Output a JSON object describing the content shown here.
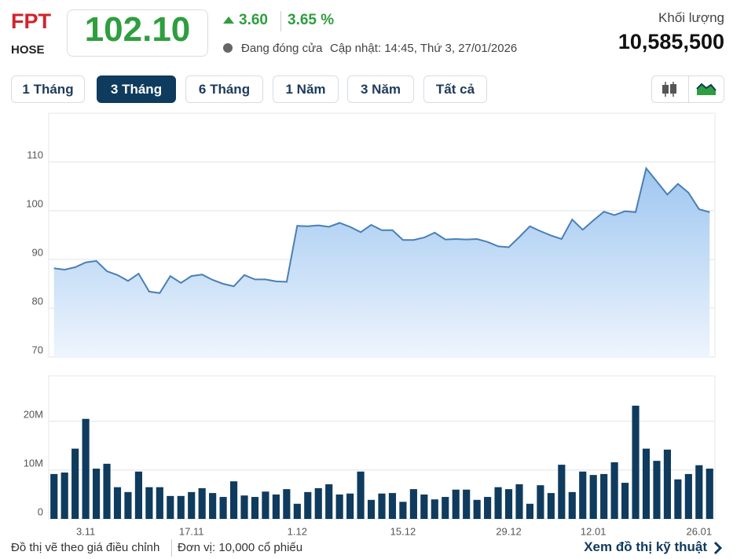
{
  "header": {
    "symbol": "FPT",
    "exchange": "HOSE",
    "price": "102.10",
    "change": "3.60",
    "change_pct": "3.65 %",
    "status": "Đang đóng cửa",
    "updated": "Cập nhật: 14:45, Thứ 3, 27/01/2026",
    "volume_label": "Khối lượng",
    "volume": "10,585,500"
  },
  "tabs": [
    "1 Tháng",
    "3 Tháng",
    "6 Tháng",
    "1 Năm",
    "3 Năm",
    "Tất cả"
  ],
  "active_tab": 1,
  "footer": {
    "note": "Đồ thị vẽ theo giá điều chỉnh",
    "unit": "Đơn vị: 10,000 cổ phiếu",
    "link": "Xem đồ thị kỹ thuật"
  },
  "chart_data": [
    {
      "type": "area",
      "color": "#4a7fb5",
      "grid": true,
      "ylim": [
        70,
        120
      ],
      "yticks": [
        70,
        80,
        90,
        100,
        110
      ],
      "values": [
        88.2,
        87.9,
        88.4,
        89.4,
        89.7,
        87.6,
        86.8,
        85.6,
        87.1,
        83.4,
        83.1,
        86.6,
        85.2,
        86.6,
        86.9,
        85.8,
        85.0,
        84.5,
        86.8,
        85.9,
        85.9,
        85.5,
        85.4,
        96.9,
        96.8,
        97.0,
        96.7,
        97.5,
        96.7,
        95.6,
        97.1,
        96.0,
        96.0,
        94.0,
        94.0,
        94.5,
        95.5,
        94.1,
        94.2,
        94.1,
        94.2,
        93.6,
        92.7,
        92.5,
        94.6,
        96.8,
        95.8,
        94.9,
        94.2,
        98.2,
        96.1,
        98.0,
        99.8,
        99.1,
        99.9,
        99.7,
        108.7,
        106.0,
        103.3,
        105.5,
        103.7,
        100.3,
        99.7
      ]
    },
    {
      "type": "bar",
      "color": "#0f3b5e",
      "grid": true,
      "ylim": [
        0,
        29000000
      ],
      "yticks": [
        0,
        {
          "value": 10000000,
          "label": "10M"
        },
        {
          "value": 20000000,
          "label": "20M"
        }
      ],
      "categories": [
        null,
        null,
        null,
        "3.11",
        null,
        null,
        null,
        null,
        null,
        null,
        null,
        null,
        null,
        "17.11",
        null,
        null,
        null,
        null,
        null,
        null,
        null,
        null,
        null,
        "1.12",
        null,
        null,
        null,
        null,
        null,
        null,
        null,
        null,
        null,
        "15.12",
        null,
        null,
        null,
        null,
        null,
        null,
        null,
        null,
        null,
        "29.12",
        null,
        null,
        null,
        null,
        null,
        null,
        null,
        "12.01",
        null,
        null,
        null,
        null,
        null,
        null,
        null,
        null,
        null,
        "26.01",
        null
      ],
      "values": [
        9200000,
        9500000,
        14400000,
        20500000,
        10300000,
        11300000,
        6500000,
        5500000,
        9700000,
        6500000,
        6500000,
        4700000,
        4700000,
        5500000,
        6300000,
        5300000,
        4500000,
        7700000,
        4800000,
        4500000,
        5600000,
        5000000,
        6100000,
        3100000,
        5500000,
        6300000,
        7100000,
        5000000,
        5200000,
        9700000,
        3900000,
        5200000,
        5300000,
        3500000,
        6100000,
        5000000,
        4000000,
        4500000,
        6000000,
        6000000,
        3900000,
        4500000,
        6500000,
        6100000,
        7100000,
        3100000,
        6900000,
        5300000,
        11100000,
        5500000,
        9700000,
        9000000,
        9200000,
        11600000,
        7400000,
        23200000,
        14400000,
        11900000,
        14200000,
        8100000,
        9200000,
        11000000,
        10300000
      ]
    }
  ]
}
